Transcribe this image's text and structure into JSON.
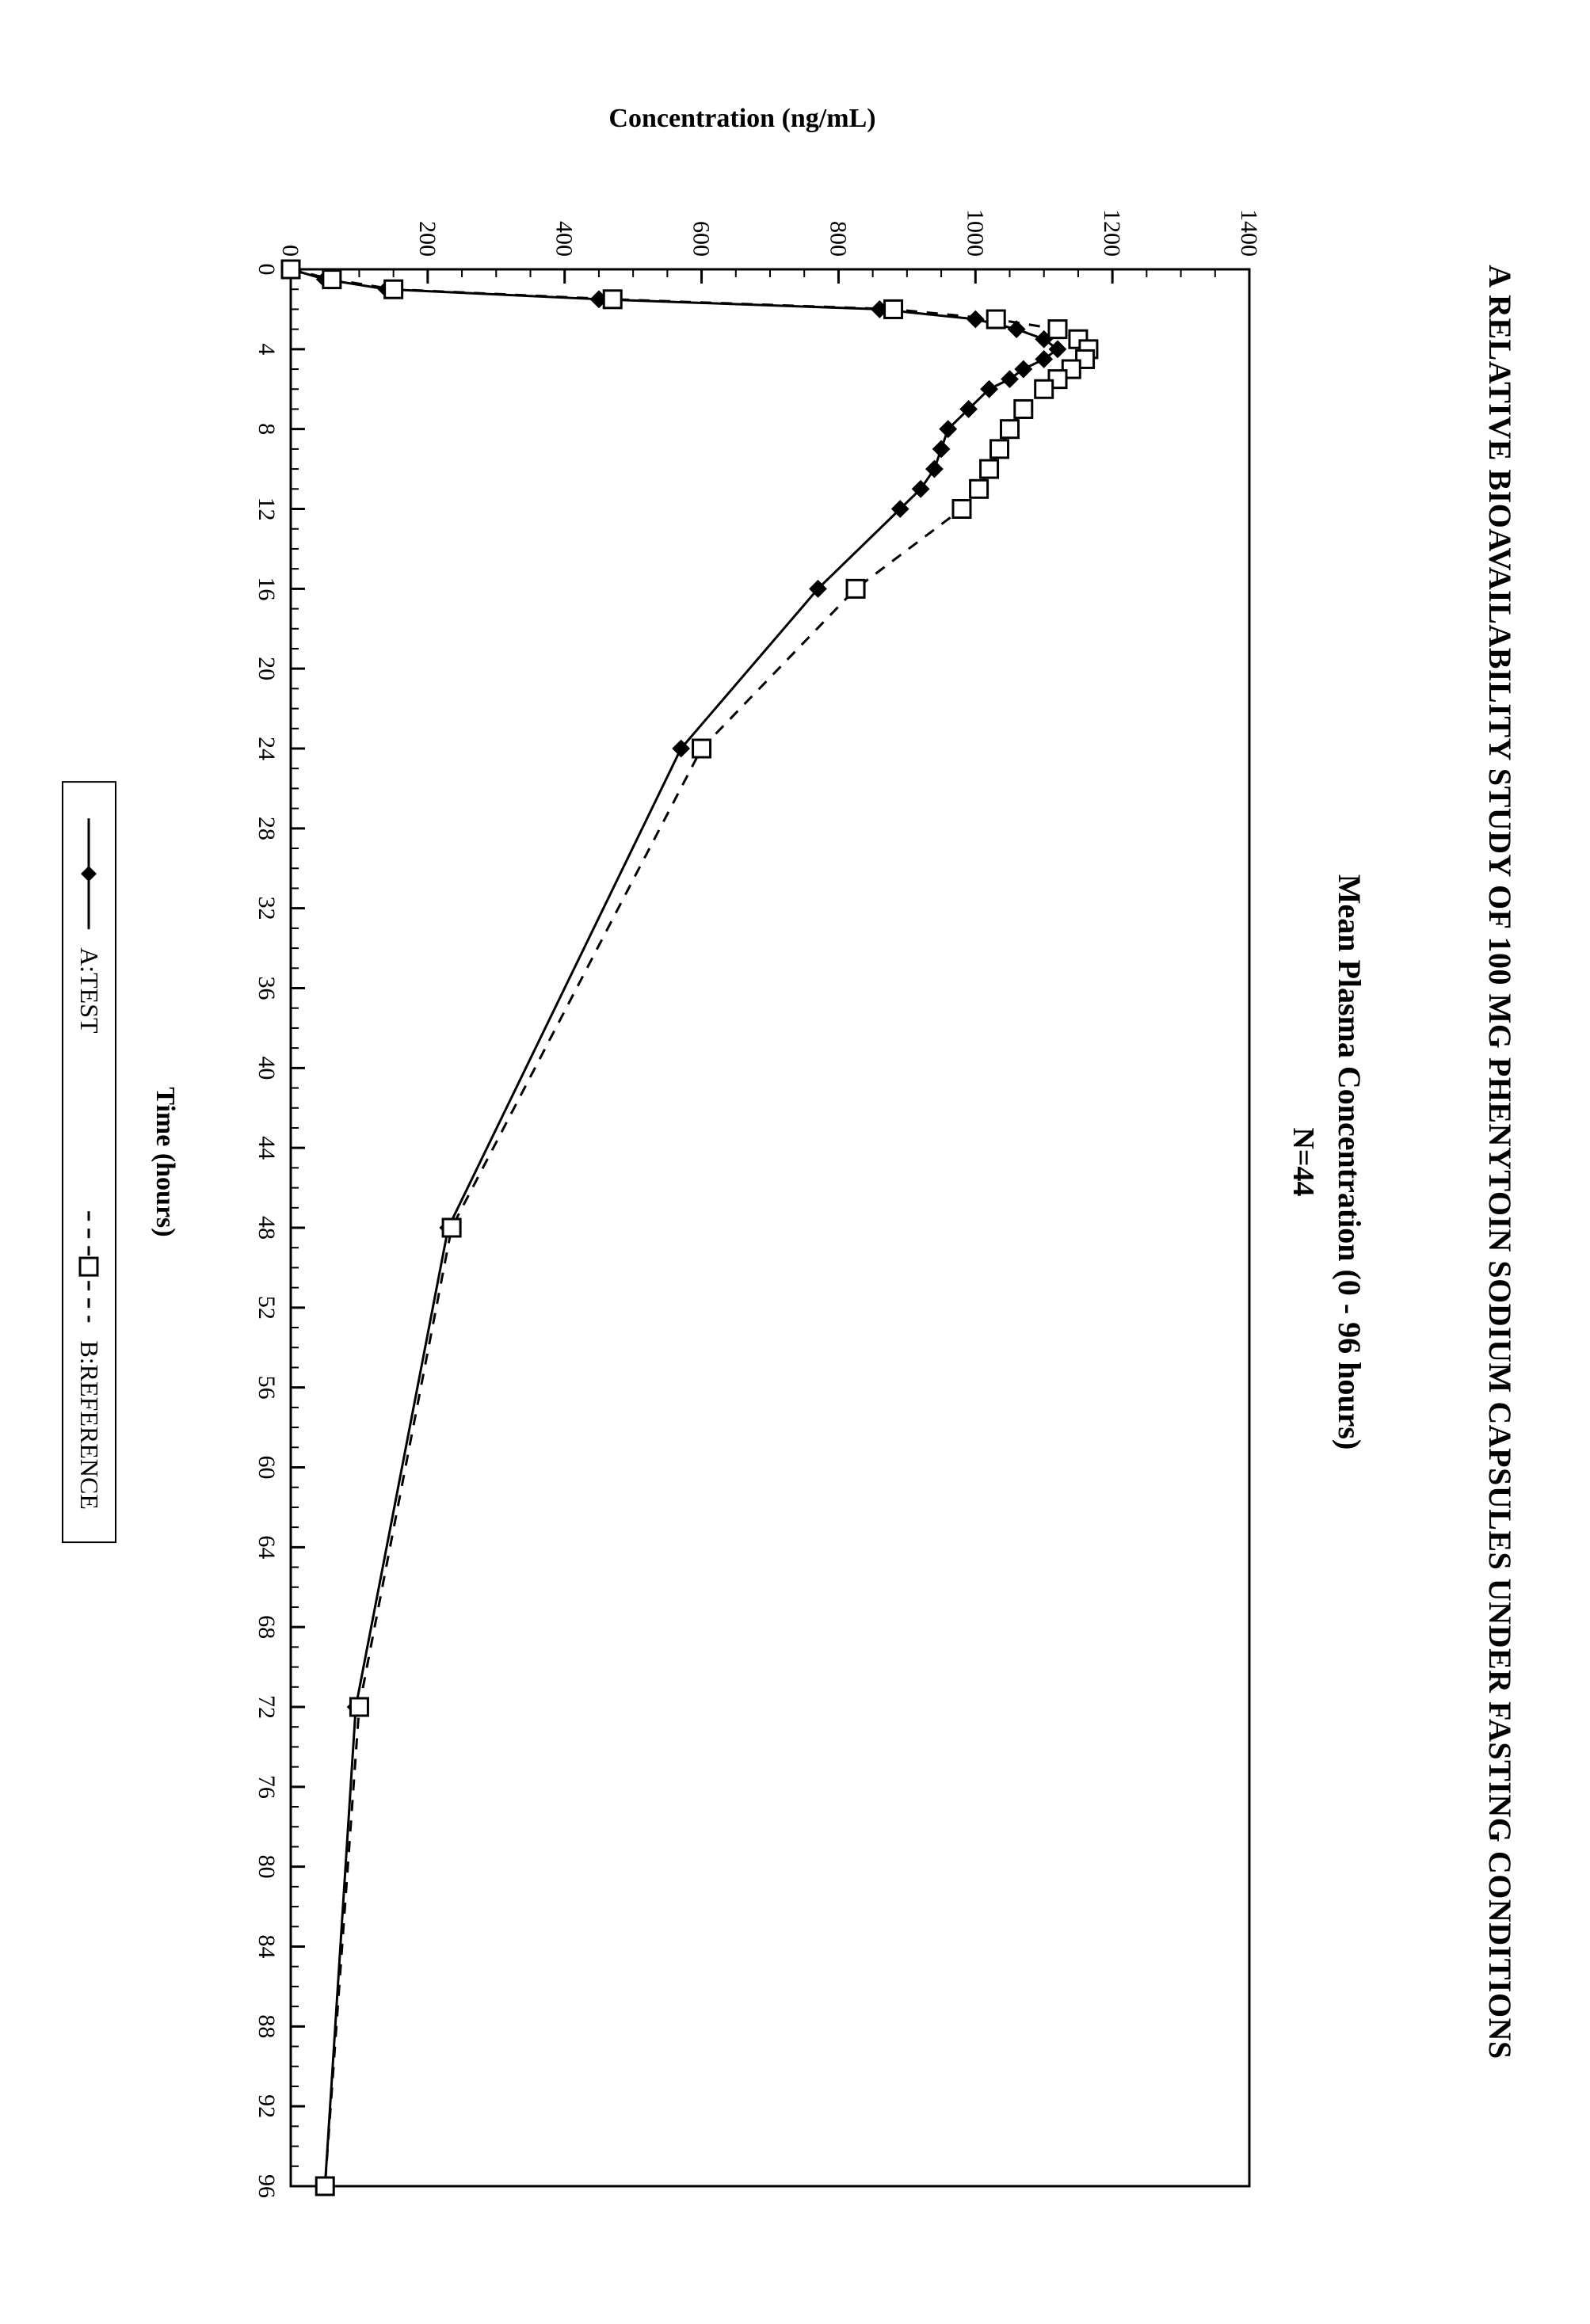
{
  "doc_title": "A RELATIVE BIOAVAILABILITY STUDY OF 100 MG PHENYTOIN SODIUM CAPSULES UNDER FASTING CONDITIONS",
  "chart": {
    "type": "line",
    "title": "Mean Plasma Concentration (0 - 96 hours)",
    "subtitle": "N=44",
    "xlabel": "Time (hours)",
    "ylabel": "Concentration (ng/mL)",
    "xlim": [
      0,
      96
    ],
    "ylim": [
      0,
      1400
    ],
    "xtick_step": 4,
    "xtick_minor_step": 1,
    "ytick_step": 200,
    "ytick_minor_step": 50,
    "axis_color": "#000000",
    "border_color": "#000000",
    "background_color": "#ffffff",
    "label_fontsize": 34,
    "tick_fontsize": 30,
    "title_fontsize": 40,
    "series": [
      {
        "name": "A:TEST",
        "color": "#000000",
        "line_style": "solid",
        "line_width": 3,
        "marker": "diamond-filled",
        "marker_size": 20,
        "x": [
          0,
          0.5,
          1,
          1.5,
          2,
          2.5,
          3,
          3.5,
          4,
          4.5,
          5,
          5.5,
          6,
          7,
          8,
          9,
          10,
          11,
          12,
          16,
          24,
          48,
          72,
          96
        ],
        "y": [
          0,
          50,
          140,
          450,
          860,
          1000,
          1060,
          1100,
          1120,
          1100,
          1070,
          1050,
          1020,
          990,
          960,
          950,
          940,
          920,
          890,
          770,
          570,
          230,
          95,
          50
        ]
      },
      {
        "name": "B:REFERENCE",
        "color": "#000000",
        "line_style": "dashed",
        "line_width": 3,
        "marker": "square-open",
        "marker_size": 22,
        "x": [
          0,
          0.5,
          1,
          1.5,
          2,
          2.5,
          3,
          3.5,
          4,
          4.5,
          5,
          5.5,
          6,
          7,
          8,
          9,
          10,
          11,
          12,
          16,
          24,
          48,
          72,
          96
        ],
        "y": [
          0,
          60,
          150,
          470,
          880,
          1030,
          1120,
          1150,
          1165,
          1160,
          1140,
          1120,
          1100,
          1070,
          1050,
          1035,
          1020,
          1005,
          980,
          825,
          600,
          235,
          100,
          50
        ]
      }
    ]
  },
  "legend": {
    "items": [
      {
        "label": "A:TEST"
      },
      {
        "label": "B:REFERENCE"
      }
    ]
  }
}
